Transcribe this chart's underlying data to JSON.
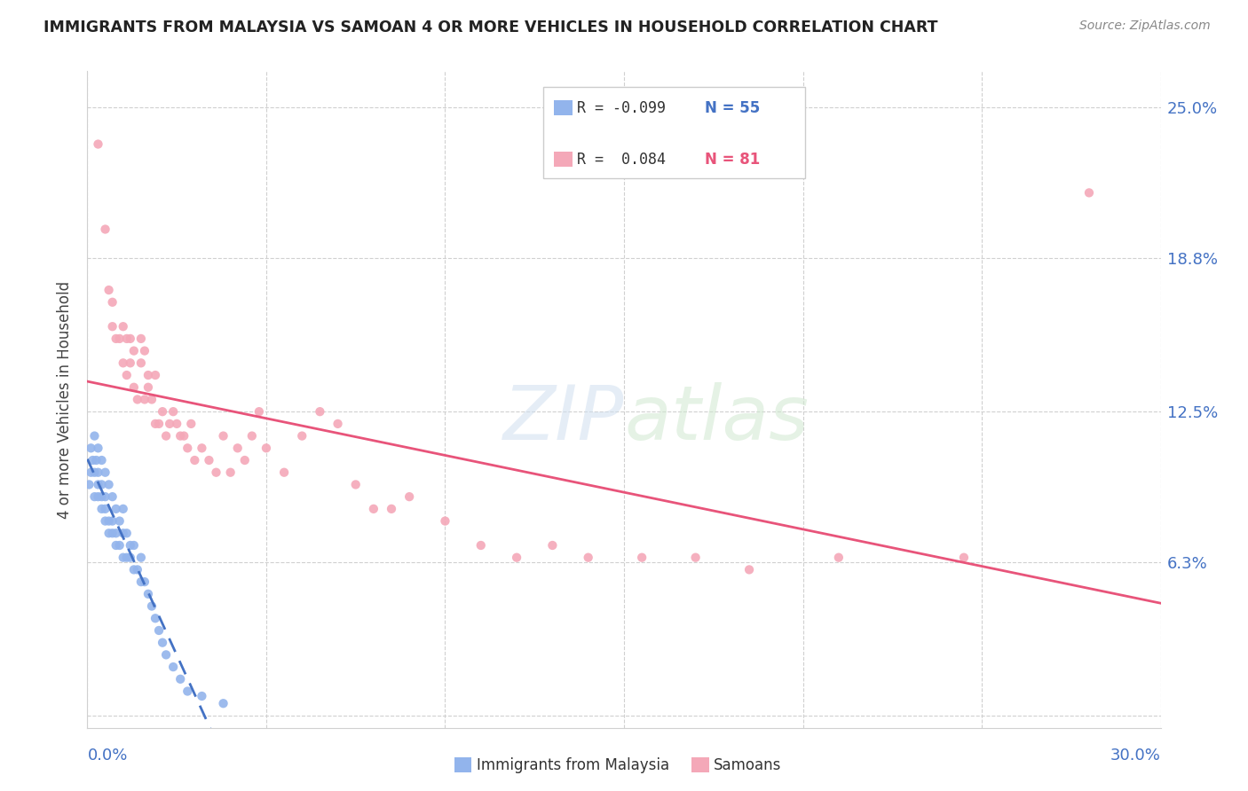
{
  "title": "IMMIGRANTS FROM MALAYSIA VS SAMOAN 4 OR MORE VEHICLES IN HOUSEHOLD CORRELATION CHART",
  "source": "Source: ZipAtlas.com",
  "ylabel": "4 or more Vehicles in Household",
  "xlim": [
    0.0,
    0.3
  ],
  "ylim": [
    -0.005,
    0.265
  ],
  "color_malaysia": "#92b4ec",
  "color_samoan": "#f4a8b8",
  "trendline_malaysia_color": "#4472c4",
  "trendline_samoan_color": "#e8547a",
  "watermark": "ZIPatlas",
  "malaysia_x": [
    0.0005,
    0.001,
    0.001,
    0.0015,
    0.002,
    0.002,
    0.002,
    0.0025,
    0.003,
    0.003,
    0.003,
    0.003,
    0.004,
    0.004,
    0.004,
    0.004,
    0.005,
    0.005,
    0.005,
    0.005,
    0.006,
    0.006,
    0.006,
    0.007,
    0.007,
    0.007,
    0.008,
    0.008,
    0.008,
    0.009,
    0.009,
    0.01,
    0.01,
    0.01,
    0.011,
    0.011,
    0.012,
    0.012,
    0.013,
    0.013,
    0.014,
    0.015,
    0.015,
    0.016,
    0.017,
    0.018,
    0.019,
    0.02,
    0.021,
    0.022,
    0.024,
    0.026,
    0.028,
    0.032,
    0.038
  ],
  "malaysia_y": [
    0.095,
    0.1,
    0.11,
    0.105,
    0.09,
    0.1,
    0.115,
    0.105,
    0.09,
    0.095,
    0.1,
    0.11,
    0.085,
    0.09,
    0.095,
    0.105,
    0.08,
    0.085,
    0.09,
    0.1,
    0.075,
    0.08,
    0.095,
    0.075,
    0.08,
    0.09,
    0.07,
    0.075,
    0.085,
    0.07,
    0.08,
    0.065,
    0.075,
    0.085,
    0.065,
    0.075,
    0.065,
    0.07,
    0.06,
    0.07,
    0.06,
    0.055,
    0.065,
    0.055,
    0.05,
    0.045,
    0.04,
    0.035,
    0.03,
    0.025,
    0.02,
    0.015,
    0.01,
    0.008,
    0.005
  ],
  "samoan_x": [
    0.003,
    0.005,
    0.006,
    0.007,
    0.007,
    0.008,
    0.009,
    0.01,
    0.01,
    0.011,
    0.011,
    0.012,
    0.012,
    0.013,
    0.013,
    0.014,
    0.015,
    0.015,
    0.016,
    0.016,
    0.017,
    0.017,
    0.018,
    0.019,
    0.019,
    0.02,
    0.021,
    0.022,
    0.023,
    0.024,
    0.025,
    0.026,
    0.027,
    0.028,
    0.029,
    0.03,
    0.032,
    0.034,
    0.036,
    0.038,
    0.04,
    0.042,
    0.044,
    0.046,
    0.048,
    0.05,
    0.055,
    0.06,
    0.065,
    0.07,
    0.075,
    0.08,
    0.085,
    0.09,
    0.1,
    0.11,
    0.12,
    0.13,
    0.14,
    0.155,
    0.17,
    0.185,
    0.21,
    0.245,
    0.28
  ],
  "samoan_y": [
    0.235,
    0.2,
    0.175,
    0.16,
    0.17,
    0.155,
    0.155,
    0.145,
    0.16,
    0.14,
    0.155,
    0.145,
    0.155,
    0.135,
    0.15,
    0.13,
    0.145,
    0.155,
    0.13,
    0.15,
    0.135,
    0.14,
    0.13,
    0.12,
    0.14,
    0.12,
    0.125,
    0.115,
    0.12,
    0.125,
    0.12,
    0.115,
    0.115,
    0.11,
    0.12,
    0.105,
    0.11,
    0.105,
    0.1,
    0.115,
    0.1,
    0.11,
    0.105,
    0.115,
    0.125,
    0.11,
    0.1,
    0.115,
    0.125,
    0.12,
    0.095,
    0.085,
    0.085,
    0.09,
    0.08,
    0.07,
    0.065,
    0.07,
    0.065,
    0.065,
    0.065,
    0.06,
    0.065,
    0.065,
    0.215
  ]
}
